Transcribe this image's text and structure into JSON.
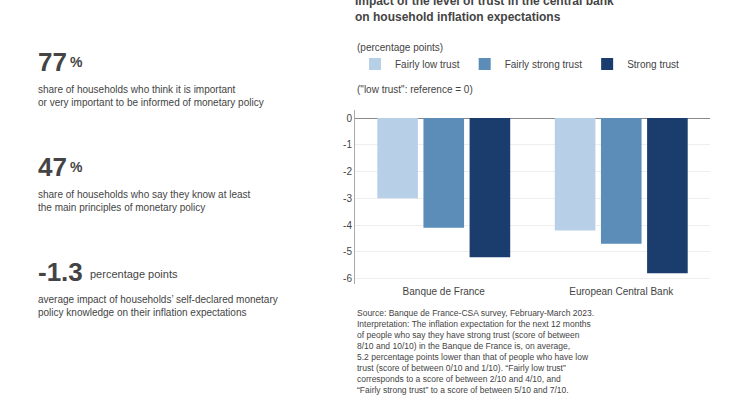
{
  "chart_data": {
    "type": "bar",
    "title": "Impact of the level of trust in the central bank\non household inflation expectations",
    "subtitle": "(percentage points)",
    "categories": [
      "Banque de France",
      "European Central Bank"
    ],
    "series": [
      {
        "name": "Fairly low trust",
        "color": "#b8cfe8",
        "values": [
          -3.0,
          -4.2
        ]
      },
      {
        "name": "Fairly strong trust",
        "color": "#5b8db8",
        "values": [
          -4.1,
          -4.7
        ]
      },
      {
        "name": "Strong trust",
        "color": "#1a3d6e",
        "values": [
          -5.2,
          -5.8
        ]
      }
    ],
    "ylim": [
      -6.2,
      0.3
    ],
    "yticks": [
      0,
      -1,
      -2,
      -3,
      -4,
      -5,
      -6
    ],
    "grid": true,
    "legend": "top left",
    "annotations": [
      "77",
      "%",
      "share of households who think it is important\nor very important to be informed of monetary policy",
      "47",
      "%",
      "share of households who say they know at least\nthe main principles of monetary policy",
      "-1.3",
      "percentage points",
      "average impact of households’ self-declared monetary\npolicy knowledge on their inflation expectations",
      "(\"low trust\": reference = 0)",
      "Source: Banque de France-CSA survey, February-March 2023.\nInterpretation: The inflation expectation for the next 12 months\nof people who say they have strong trust (score of between\n8/10 and 10/10) in the Banque de France is, on average,\n5.2 percentage points lower than that of people who have low\ntrust (score of between 0/10 and 1/10). “Fairly low trust”\ncorresponds to a score of between 2/10 and 4/10, and\n“Fairly strong trust” to a score of between 5/10 and 7/10."
    ]
  }
}
